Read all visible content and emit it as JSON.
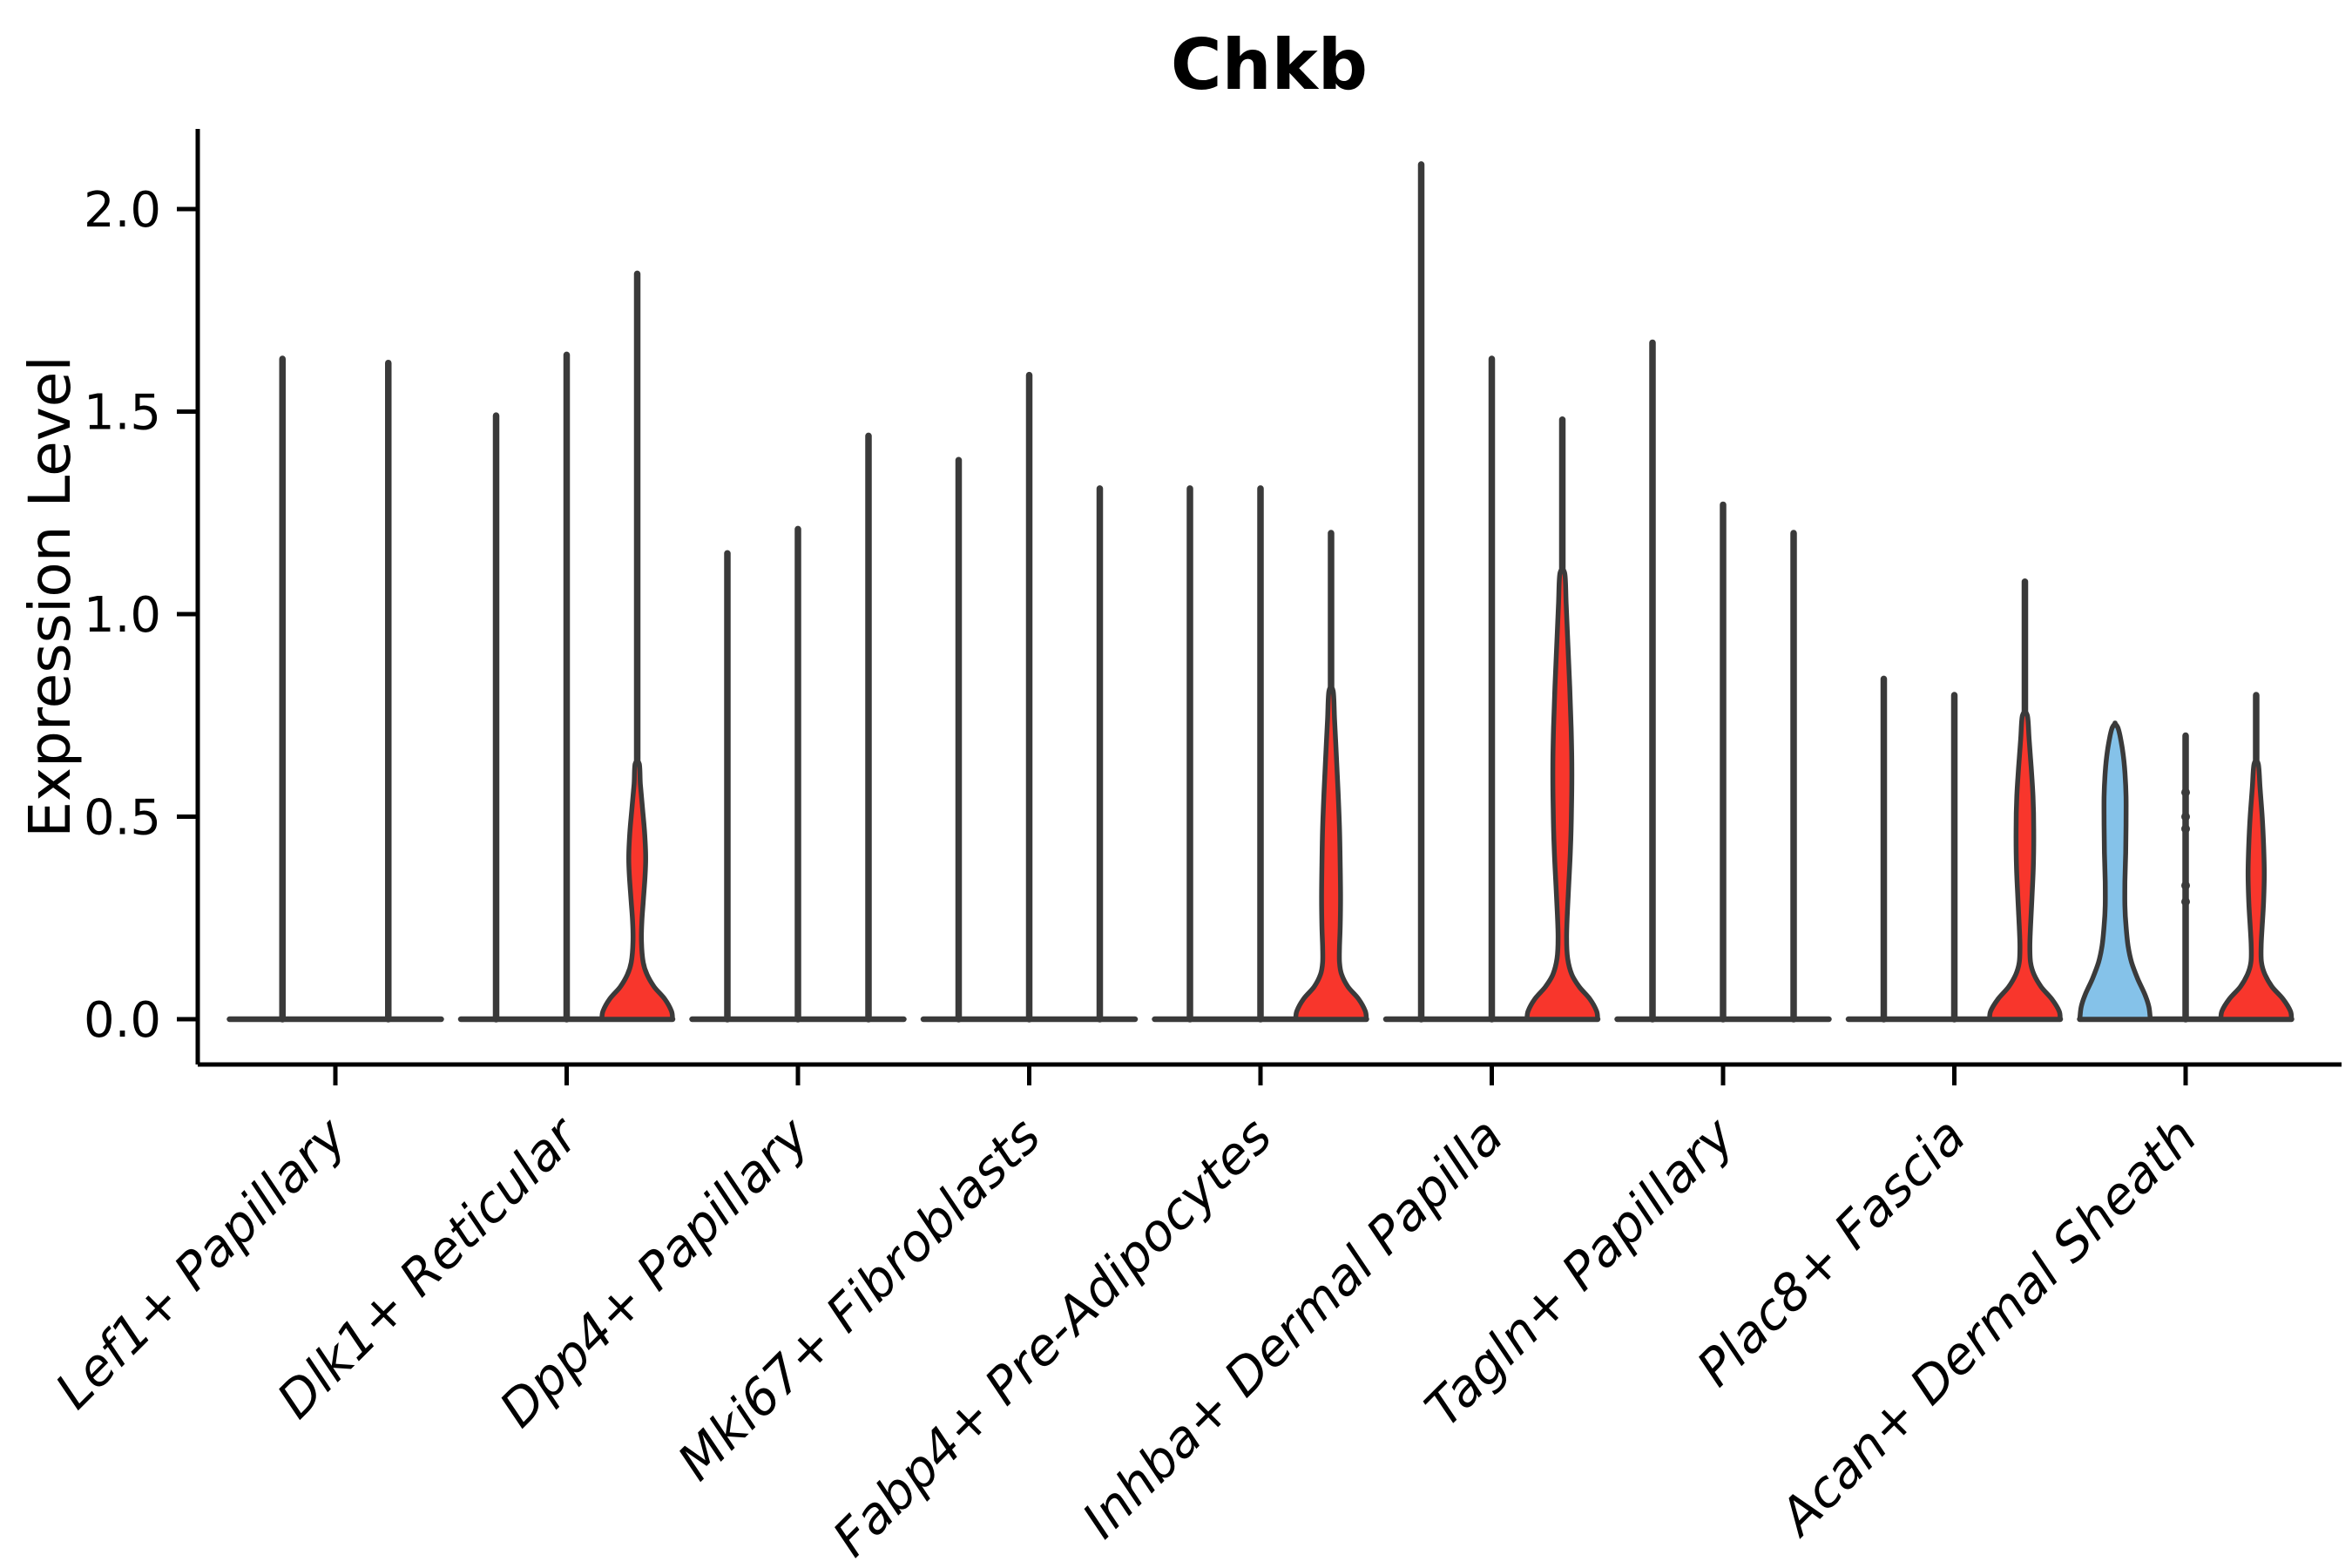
{
  "chart_data": {
    "type": "violin",
    "title": "Chkb",
    "ylabel": "Expression Level",
    "xlabel": "",
    "ylim": [
      0,
      2.2
    ],
    "grid": false,
    "legend": "none",
    "ytick_labels": [
      "0.0",
      "0.5",
      "1.0",
      "1.5",
      "2.0"
    ],
    "ytick_values": [
      0.0,
      0.5,
      1.0,
      1.5,
      2.0
    ],
    "colors": {
      "red_fill": "#F8362C",
      "blue_fill": "#85C2E9",
      "violin_outline": "#3A3A3A",
      "axis": "#000000",
      "background": "#FFFFFF"
    },
    "categories": [
      "Lef1+ Papillary",
      "Dlk1+ Reticular",
      "Dpp4+ Papillary",
      "Mki67+ Fibroblasts",
      "Fabp4+ Pre-Adipocytes",
      "Inhba+ Dermal Papilla",
      "Tagln+ Papillary",
      "Plac8+ Fascia",
      "Acan+ Dermal Sheath"
    ],
    "groups": [
      {
        "violins": [
          {
            "fill": "none",
            "max": 1.63
          },
          {
            "fill": "none",
            "max": 1.62
          }
        ]
      },
      {
        "violins": [
          {
            "fill": "none",
            "max": 1.49
          },
          {
            "fill": "none",
            "max": 1.64
          },
          {
            "fill": "red",
            "max": 1.84,
            "body": [
              [
                0,
                1
              ],
              [
                0.02,
                0.97
              ],
              [
                0.05,
                0.78
              ],
              [
                0.08,
                0.48
              ],
              [
                0.11,
                0.28
              ],
              [
                0.14,
                0.17
              ],
              [
                0.19,
                0.12
              ],
              [
                0.24,
                0.13
              ],
              [
                0.29,
                0.17
              ],
              [
                0.35,
                0.22
              ],
              [
                0.4,
                0.24
              ],
              [
                0.46,
                0.21
              ],
              [
                0.52,
                0.15
              ],
              [
                0.58,
                0.09
              ],
              [
                0.63,
                0.06
              ]
            ]
          }
        ]
      },
      {
        "violins": [
          {
            "fill": "none",
            "max": 1.15
          },
          {
            "fill": "none",
            "max": 1.21
          },
          {
            "fill": "none",
            "max": 1.44
          }
        ]
      },
      {
        "violins": [
          {
            "fill": "none",
            "max": 1.38
          },
          {
            "fill": "none",
            "max": 1.59
          },
          {
            "fill": "none",
            "max": 1.31
          }
        ]
      },
      {
        "violins": [
          {
            "fill": "none",
            "max": 1.31
          },
          {
            "fill": "none",
            "max": 1.31
          },
          {
            "fill": "red",
            "max": 1.2,
            "body": [
              [
                0,
                1
              ],
              [
                0.02,
                0.97
              ],
              [
                0.05,
                0.78
              ],
              [
                0.08,
                0.48
              ],
              [
                0.11,
                0.3
              ],
              [
                0.14,
                0.24
              ],
              [
                0.18,
                0.24
              ],
              [
                0.23,
                0.26
              ],
              [
                0.3,
                0.27
              ],
              [
                0.38,
                0.26
              ],
              [
                0.47,
                0.24
              ],
              [
                0.56,
                0.2
              ],
              [
                0.65,
                0.15
              ],
              [
                0.74,
                0.1
              ],
              [
                0.81,
                0.06
              ]
            ]
          }
        ]
      },
      {
        "violins": [
          {
            "fill": "none",
            "max": 2.11
          },
          {
            "fill": "none",
            "max": 1.63
          },
          {
            "fill": "red",
            "max": 1.48,
            "body": [
              [
                0,
                1
              ],
              [
                0.02,
                0.97
              ],
              [
                0.05,
                0.78
              ],
              [
                0.08,
                0.48
              ],
              [
                0.11,
                0.27
              ],
              [
                0.15,
                0.15
              ],
              [
                0.2,
                0.12
              ],
              [
                0.26,
                0.14
              ],
              [
                0.33,
                0.18
              ],
              [
                0.42,
                0.23
              ],
              [
                0.52,
                0.26
              ],
              [
                0.62,
                0.27
              ],
              [
                0.72,
                0.25
              ],
              [
                0.82,
                0.21
              ],
              [
                0.92,
                0.16
              ],
              [
                1.02,
                0.11
              ],
              [
                1.1,
                0.07
              ]
            ]
          }
        ]
      },
      {
        "violins": [
          {
            "fill": "none",
            "max": 1.67
          },
          {
            "fill": "none",
            "max": 1.27
          },
          {
            "fill": "none",
            "max": 1.2
          }
        ]
      },
      {
        "violins": [
          {
            "fill": "none",
            "max": 0.84
          },
          {
            "fill": "none",
            "max": 0.8
          },
          {
            "fill": "red",
            "max": 1.08,
            "body": [
              [
                0,
                1
              ],
              [
                0.02,
                0.97
              ],
              [
                0.05,
                0.76
              ],
              [
                0.08,
                0.46
              ],
              [
                0.11,
                0.26
              ],
              [
                0.14,
                0.16
              ],
              [
                0.18,
                0.14
              ],
              [
                0.23,
                0.16
              ],
              [
                0.3,
                0.2
              ],
              [
                0.38,
                0.24
              ],
              [
                0.47,
                0.25
              ],
              [
                0.55,
                0.23
              ],
              [
                0.62,
                0.18
              ],
              [
                0.69,
                0.12
              ],
              [
                0.75,
                0.07
              ]
            ]
          }
        ]
      },
      {
        "violins": [
          {
            "fill": "blue",
            "max": 0.73,
            "body": [
              [
                0,
                1
              ],
              [
                0.03,
                0.96
              ],
              [
                0.06,
                0.85
              ],
              [
                0.1,
                0.64
              ],
              [
                0.14,
                0.47
              ],
              [
                0.18,
                0.37
              ],
              [
                0.23,
                0.31
              ],
              [
                0.28,
                0.28
              ],
              [
                0.34,
                0.28
              ],
              [
                0.41,
                0.3
              ],
              [
                0.48,
                0.31
              ],
              [
                0.55,
                0.31
              ],
              [
                0.61,
                0.28
              ],
              [
                0.66,
                0.22
              ],
              [
                0.7,
                0.14
              ],
              [
                0.72,
                0.08
              ],
              [
                0.73,
                0.0
              ]
            ]
          },
          {
            "fill": "none",
            "max": 0.7,
            "points": [
              0.56,
              0.5,
              0.47,
              0.33,
              0.29
            ]
          },
          {
            "fill": "red",
            "max": 0.8,
            "body": [
              [
                0,
                1
              ],
              [
                0.02,
                0.97
              ],
              [
                0.05,
                0.76
              ],
              [
                0.08,
                0.45
              ],
              [
                0.11,
                0.25
              ],
              [
                0.14,
                0.15
              ],
              [
                0.18,
                0.14
              ],
              [
                0.23,
                0.17
              ],
              [
                0.29,
                0.21
              ],
              [
                0.36,
                0.23
              ],
              [
                0.43,
                0.21
              ],
              [
                0.5,
                0.17
              ],
              [
                0.57,
                0.11
              ],
              [
                0.63,
                0.06
              ]
            ]
          }
        ]
      }
    ]
  }
}
